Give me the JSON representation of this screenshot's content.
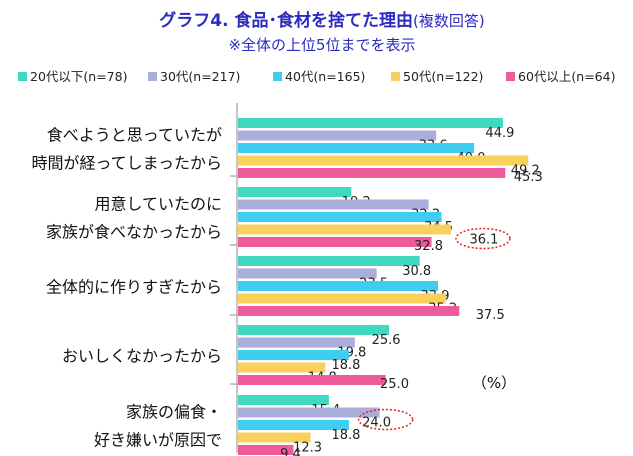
{
  "chart_data": {
    "type": "bar",
    "orientation": "horizontal",
    "title": "グラフ4. 食品･食材を捨てた理由",
    "title_suffix": "(複数回答)",
    "subtitle": "※全体の上位5位までを表示",
    "unit": "（%）",
    "legend_position": "top",
    "grid": false,
    "xlim": [
      0,
      60
    ],
    "categories": [
      [
        "食べようと思っていたが",
        "時間が経ってしまったから"
      ],
      [
        "用意していたのに",
        "家族が食べなかったから"
      ],
      [
        "全体的に作りすぎたから"
      ],
      [
        "おいしくなかったから"
      ],
      [
        "家族の偏食・",
        "好き嫌いが原因で"
      ]
    ],
    "series": [
      {
        "name": "20代以下(n=78)",
        "color": "#3fd9c2",
        "values": [
          44.9,
          19.2,
          30.8,
          25.6,
          15.4
        ]
      },
      {
        "name": "30代(n=217)",
        "color": "#a9aedb",
        "values": [
          33.6,
          32.3,
          23.5,
          19.8,
          24.0
        ]
      },
      {
        "name": "40代(n=165)",
        "color": "#3fcdf0",
        "values": [
          40.0,
          34.5,
          33.9,
          18.8,
          18.8
        ]
      },
      {
        "name": "50代(n=122)",
        "color": "#f9d05c",
        "values": [
          49.2,
          36.1,
          35.2,
          14.8,
          12.3
        ]
      },
      {
        "name": "60代以上(n=64)",
        "color": "#ef5a9b",
        "values": [
          45.3,
          32.8,
          37.5,
          25.0,
          9.4
        ]
      }
    ],
    "highlights": [
      {
        "category_index": 1,
        "series_index": 3,
        "color": "#e02020"
      },
      {
        "category_index": 4,
        "series_index": 1,
        "color": "#e02020"
      }
    ]
  }
}
